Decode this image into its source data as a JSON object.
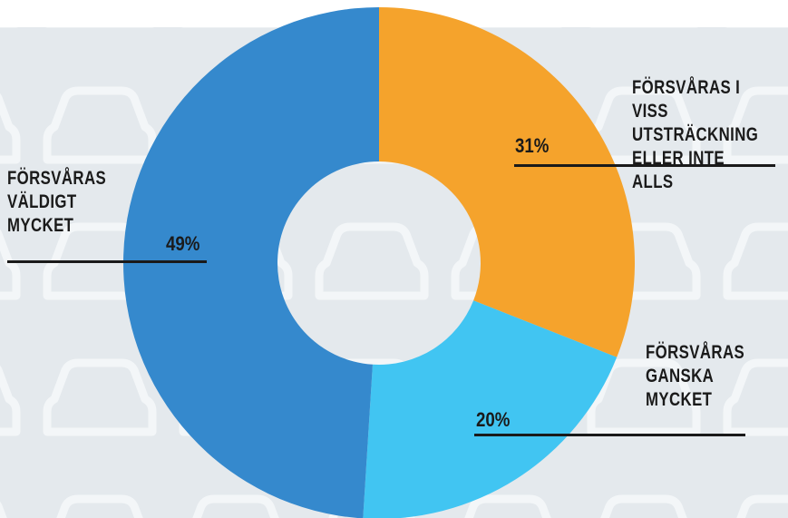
{
  "chart_data": {
    "type": "donut",
    "categories": [
      "FÖRSVÅRAS I VISS\nUTSTRÄCKNING\nELLER INTE ALLS",
      "FÖRSVÅRAS\nGANSKA\nMYCKET",
      "FÖRSVÅRAS\nVÄLDIGT\nMYCKET"
    ],
    "values": [
      31,
      20,
      49
    ],
    "value_labels": [
      "31%",
      "20%",
      "49%"
    ],
    "colors": [
      "#f5a32c",
      "#41c5f2",
      "#3589cd"
    ]
  }
}
